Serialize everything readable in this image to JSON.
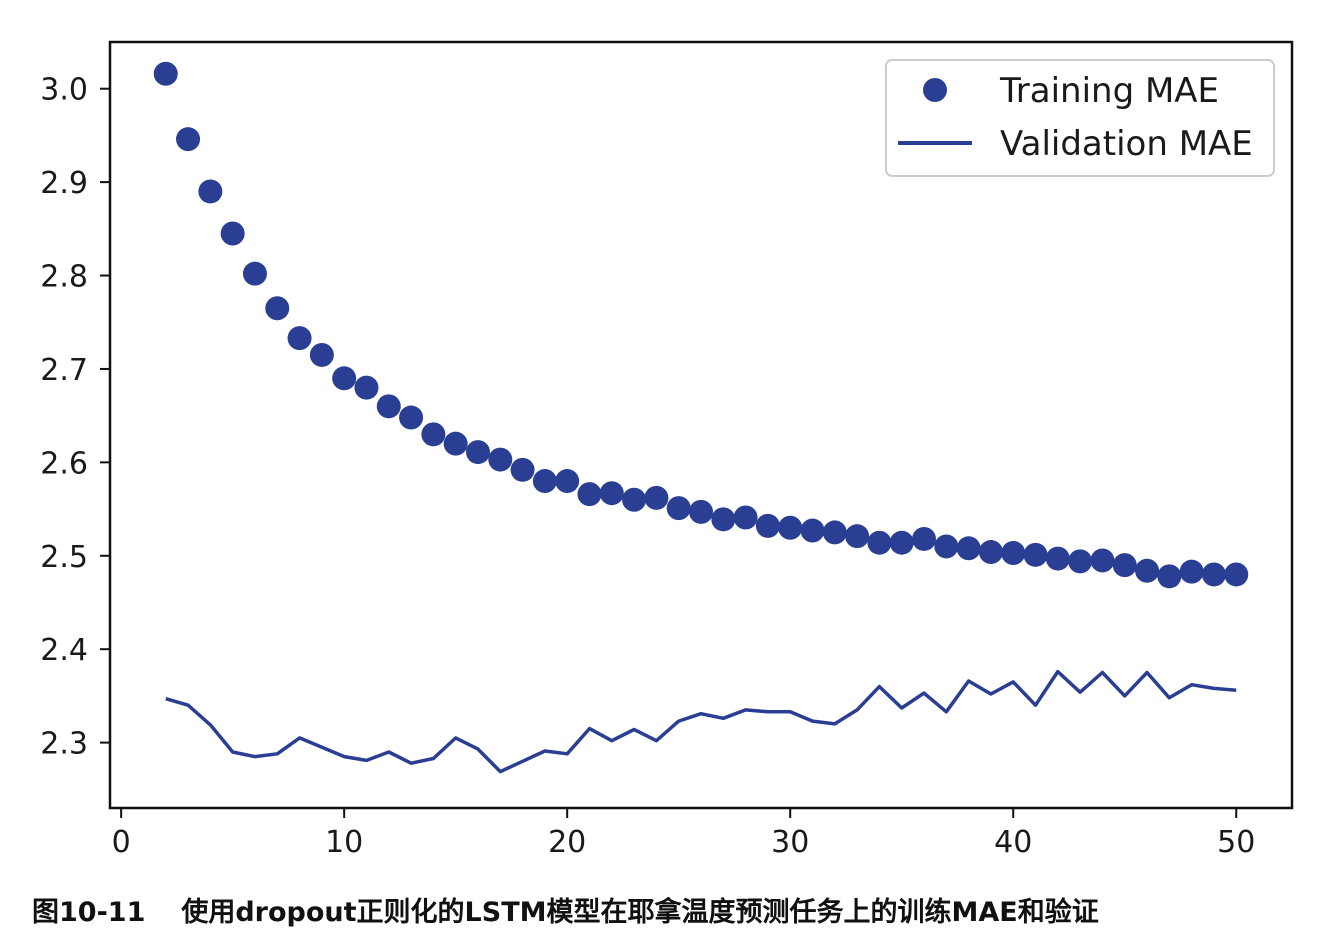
{
  "caption": {
    "figure_number": "图10-11",
    "text": "使用dropout正则化的LSTM模型在耶拿温度预测任务上的训练MAE和验证"
  },
  "chart_data": {
    "type": "line",
    "title": "",
    "xlabel": "",
    "ylabel": "",
    "xlim": [
      -0.5,
      52.5
    ],
    "ylim": [
      2.23,
      3.05
    ],
    "xticks": [
      0,
      10,
      20,
      30,
      40,
      50
    ],
    "yticks": [
      2.3,
      2.4,
      2.5,
      2.6,
      2.7,
      2.8,
      2.9,
      3.0
    ],
    "xtick_labels": [
      "0",
      "10",
      "20",
      "30",
      "40",
      "50"
    ],
    "ytick_labels": [
      "2.3",
      "2.4",
      "2.5",
      "2.6",
      "2.7",
      "2.8",
      "2.9",
      "3.0"
    ],
    "grid": false,
    "legend": {
      "position": "top-right"
    },
    "x": [
      2,
      3,
      4,
      5,
      6,
      7,
      8,
      9,
      10,
      11,
      12,
      13,
      14,
      15,
      16,
      17,
      18,
      19,
      20,
      21,
      22,
      23,
      24,
      25,
      26,
      27,
      28,
      29,
      30,
      31,
      32,
      33,
      34,
      35,
      36,
      37,
      38,
      39,
      40,
      41,
      42,
      43,
      44,
      45,
      46,
      47,
      48,
      49,
      50
    ],
    "series": [
      {
        "name": "Training MAE",
        "style": "markers",
        "color": "#2a3f94",
        "values": [
          3.016,
          2.946,
          2.89,
          2.845,
          2.802,
          2.765,
          2.733,
          2.715,
          2.69,
          2.68,
          2.66,
          2.648,
          2.63,
          2.62,
          2.611,
          2.603,
          2.592,
          2.58,
          2.58,
          2.566,
          2.567,
          2.56,
          2.562,
          2.551,
          2.547,
          2.539,
          2.541,
          2.532,
          2.53,
          2.527,
          2.525,
          2.521,
          2.514,
          2.514,
          2.518,
          2.51,
          2.508,
          2.504,
          2.503,
          2.501,
          2.497,
          2.494,
          2.495,
          2.49,
          2.484,
          2.478,
          2.483,
          2.48,
          2.48
        ]
      },
      {
        "name": "Validation MAE",
        "style": "line",
        "color": "#2a3f94",
        "values": [
          2.347,
          2.34,
          2.319,
          2.29,
          2.285,
          2.288,
          2.305,
          2.295,
          2.285,
          2.281,
          2.29,
          2.278,
          2.283,
          2.305,
          2.293,
          2.269,
          2.28,
          2.291,
          2.288,
          2.315,
          2.302,
          2.314,
          2.302,
          2.323,
          2.331,
          2.326,
          2.335,
          2.333,
          2.333,
          2.323,
          2.32,
          2.335,
          2.36,
          2.337,
          2.353,
          2.333,
          2.366,
          2.352,
          2.365,
          2.34,
          2.376,
          2.354,
          2.375,
          2.35,
          2.375,
          2.348,
          2.362,
          2.358,
          2.356
        ]
      }
    ]
  }
}
